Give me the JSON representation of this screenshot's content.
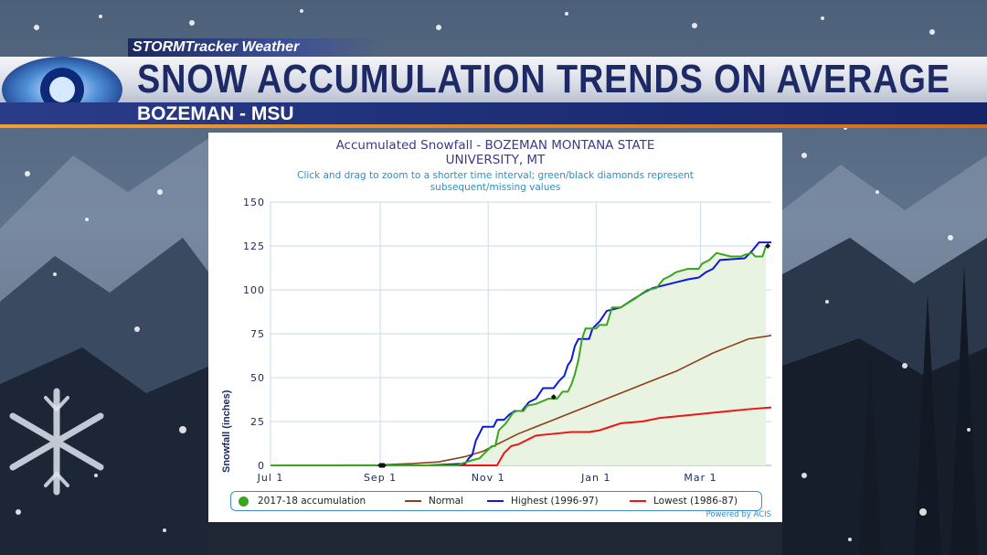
{
  "header": {
    "brand": "STORMTracker Weather",
    "title": "SNOW ACCUMULATION TRENDS ON AVERAGE",
    "subtitle": "BOZEMAN - MSU"
  },
  "colors": {
    "title_navy": "#1d2a66",
    "accent_orange": "#e8882a",
    "season": "#3aa61e",
    "normal": "#8b3f17",
    "highest": "#0b1adb",
    "lowest": "#ef1515",
    "grid": "#c9dbe9"
  },
  "chart_data": {
    "type": "line",
    "title": "Accumulated Snowfall - BOZEMAN MONTANA STATE UNIVERSITY, MT",
    "title_lines": [
      "Accumulated Snowfall - BOZEMAN MONTANA STATE",
      "UNIVERSITY, MT"
    ],
    "subtitle_lines": [
      "Click and drag to zoom to a shorter time interval; green/black diamonds represent",
      "subsequent/missing values"
    ],
    "xlabel": "",
    "ylabel": "Snowfall (inches)",
    "x_tick_labels": [
      "Jul 1",
      "Sep 1",
      "Nov 1",
      "Jan 1",
      "Mar 1"
    ],
    "x_tick_days": [
      0,
      62,
      123,
      184,
      243
    ],
    "x_range_days": [
      0,
      283
    ],
    "ylim": [
      0,
      150
    ],
    "y_ticks": [
      0,
      25,
      50,
      75,
      100,
      125,
      150
    ],
    "grid": true,
    "legend_position": "bottom",
    "credits": "Powered by ACIS",
    "series": [
      {
        "name": "2017-18 accumulation",
        "key": "season",
        "marker": "circle",
        "fill": true,
        "points": [
          [
            0,
            0
          ],
          [
            95,
            0
          ],
          [
            106,
            0
          ],
          [
            108,
            1
          ],
          [
            114,
            3
          ],
          [
            118,
            4
          ],
          [
            121,
            7
          ],
          [
            125,
            11
          ],
          [
            127,
            11
          ],
          [
            129,
            20
          ],
          [
            133,
            24
          ],
          [
            135,
            27
          ],
          [
            137,
            30
          ],
          [
            139,
            31
          ],
          [
            143,
            31
          ],
          [
            145,
            34
          ],
          [
            150,
            35
          ],
          [
            157,
            38
          ],
          [
            160,
            38
          ],
          [
            162,
            38
          ],
          [
            165,
            42
          ],
          [
            168,
            42
          ],
          [
            170,
            46
          ],
          [
            172,
            52
          ],
          [
            174,
            60
          ],
          [
            176,
            72
          ],
          [
            178,
            78
          ],
          [
            184,
            78
          ],
          [
            186,
            80
          ],
          [
            190,
            80
          ],
          [
            193,
            90
          ],
          [
            198,
            90
          ],
          [
            201,
            92
          ],
          [
            206,
            95
          ],
          [
            210,
            98
          ],
          [
            213,
            100
          ],
          [
            218,
            101
          ],
          [
            222,
            106
          ],
          [
            226,
            108
          ],
          [
            229,
            110
          ],
          [
            236,
            112
          ],
          [
            242,
            112
          ],
          [
            244,
            115
          ],
          [
            248,
            117
          ],
          [
            252,
            121
          ],
          [
            256,
            120
          ],
          [
            260,
            119
          ],
          [
            266,
            119
          ],
          [
            268,
            120
          ],
          [
            272,
            121
          ],
          [
            274,
            119
          ],
          [
            278,
            119
          ],
          [
            280,
            125
          ]
        ]
      },
      {
        "name": "Normal",
        "key": "normal",
        "points": [
          [
            0,
            0
          ],
          [
            60,
            0.2
          ],
          [
            70,
            0.6
          ],
          [
            80,
            1
          ],
          [
            95,
            2
          ],
          [
            110,
            5
          ],
          [
            120,
            8
          ],
          [
            130,
            13
          ],
          [
            140,
            18
          ],
          [
            150,
            22
          ],
          [
            160,
            26
          ],
          [
            170,
            30
          ],
          [
            180,
            34
          ],
          [
            190,
            38
          ],
          [
            200,
            42
          ],
          [
            210,
            46
          ],
          [
            220,
            50
          ],
          [
            230,
            54
          ],
          [
            240,
            59
          ],
          [
            250,
            64
          ],
          [
            260,
            68
          ],
          [
            270,
            72
          ],
          [
            283,
            74
          ]
        ]
      },
      {
        "name": "Highest (1996-97)",
        "key": "highest",
        "points": [
          [
            0,
            0
          ],
          [
            88,
            0
          ],
          [
            110,
            1
          ],
          [
            112,
            4
          ],
          [
            114,
            6
          ],
          [
            116,
            14
          ],
          [
            118,
            18
          ],
          [
            120,
            22
          ],
          [
            126,
            22
          ],
          [
            128,
            26
          ],
          [
            132,
            26
          ],
          [
            135,
            29
          ],
          [
            138,
            31
          ],
          [
            142,
            31
          ],
          [
            146,
            36
          ],
          [
            150,
            38
          ],
          [
            154,
            44
          ],
          [
            160,
            44
          ],
          [
            163,
            48
          ],
          [
            166,
            51
          ],
          [
            168,
            57
          ],
          [
            170,
            60
          ],
          [
            172,
            68
          ],
          [
            174,
            72
          ],
          [
            180,
            72
          ],
          [
            182,
            78
          ],
          [
            186,
            82
          ],
          [
            190,
            88
          ],
          [
            198,
            90
          ],
          [
            204,
            94
          ],
          [
            212,
            99
          ],
          [
            216,
            101
          ],
          [
            220,
            102
          ],
          [
            228,
            104
          ],
          [
            236,
            106
          ],
          [
            242,
            107
          ],
          [
            246,
            110
          ],
          [
            250,
            112
          ],
          [
            254,
            117
          ],
          [
            268,
            118
          ],
          [
            272,
            122
          ],
          [
            276,
            127
          ],
          [
            283,
            127
          ]
        ]
      },
      {
        "name": "Lowest (1986-87)",
        "key": "lowest",
        "points": [
          [
            0,
            0
          ],
          [
            128,
            0
          ],
          [
            132,
            7
          ],
          [
            136,
            11
          ],
          [
            140,
            12
          ],
          [
            146,
            15
          ],
          [
            150,
            17
          ],
          [
            160,
            18
          ],
          [
            170,
            19
          ],
          [
            180,
            19
          ],
          [
            186,
            20
          ],
          [
            192,
            22
          ],
          [
            198,
            24
          ],
          [
            210,
            25
          ],
          [
            220,
            27
          ],
          [
            230,
            28
          ],
          [
            240,
            29
          ],
          [
            250,
            30
          ],
          [
            260,
            31
          ],
          [
            270,
            32
          ],
          [
            283,
            33
          ]
        ]
      }
    ],
    "diamond_markers": [
      [
        62,
        0
      ],
      [
        63,
        0
      ],
      [
        64,
        0
      ],
      [
        160,
        39
      ],
      [
        281,
        125
      ]
    ]
  }
}
